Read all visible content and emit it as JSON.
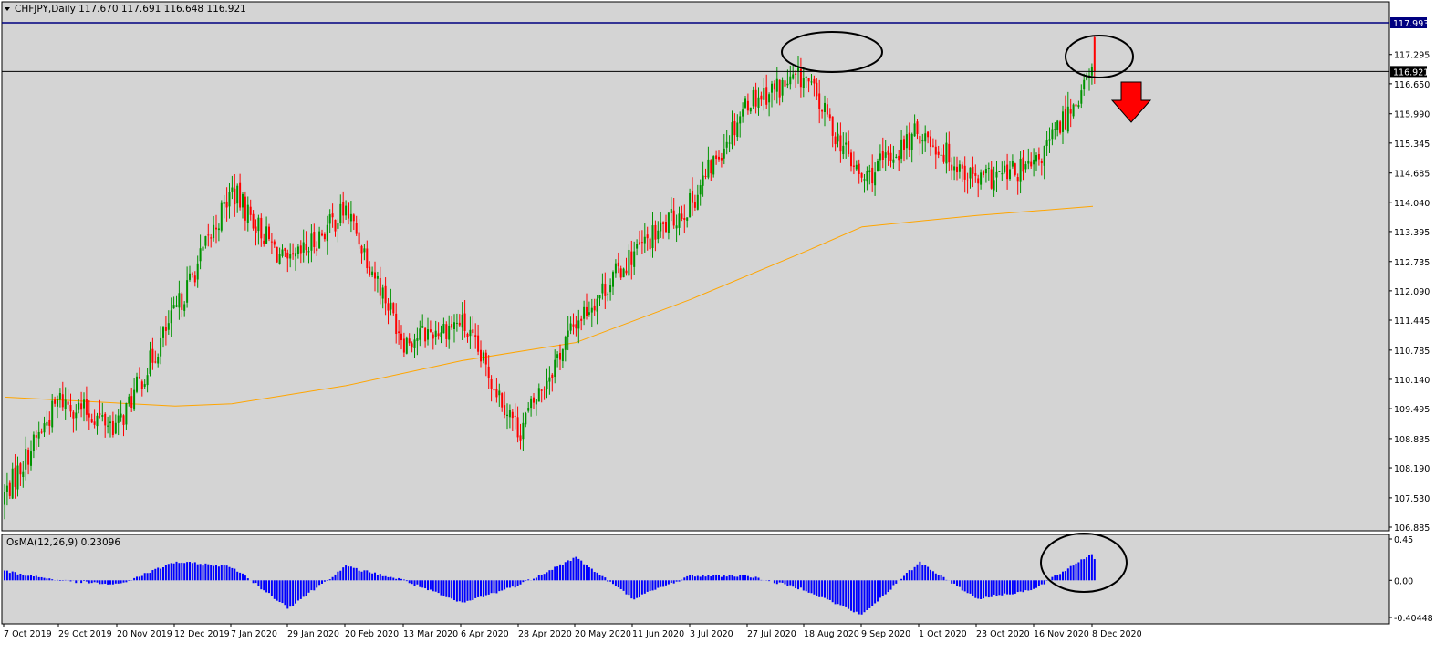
{
  "window": {
    "menu_icon": "triangle-down-icon",
    "header": "CHFJPY,Daily  117.670 117.691 116.648 116.921"
  },
  "chart_data": {
    "type": "candlestick",
    "symbol": "CHFJPY",
    "timeframe": "Daily",
    "ohlc_last": {
      "open": 117.67,
      "high": 117.691,
      "low": 116.648,
      "close": 116.921
    },
    "ylim": [
      106.885,
      117.993
    ],
    "y_ticks": [
      "117.993",
      "117.295",
      "116.921",
      "116.650",
      "115.990",
      "115.345",
      "114.685",
      "114.040",
      "113.395",
      "112.735",
      "112.090",
      "111.445",
      "110.785",
      "110.140",
      "109.495",
      "108.835",
      "108.190",
      "107.530",
      "106.885"
    ],
    "x_labels": [
      "7 Oct 2019",
      "29 Oct 2019",
      "20 Nov 2019",
      "12 Dec 2019",
      "7 Jan 2020",
      "29 Jan 2020",
      "20 Feb 2020",
      "13 Mar 2020",
      "6 Apr 2020",
      "28 Apr 2020",
      "20 May 2020",
      "11 Jun 2020",
      "3 Jul 2020",
      "27 Jul 2020",
      "18 Aug 2020",
      "9 Sep 2020",
      "1 Oct 2020",
      "23 Oct 2020",
      "16 Nov 2020",
      "8 Dec 2020"
    ],
    "close_anchors": [
      {
        "date": "7 Oct 2019",
        "close": 107.6
      },
      {
        "date": "29 Oct 2019",
        "close": 109.7
      },
      {
        "date": "20 Nov 2019",
        "close": 109.1
      },
      {
        "date": "12 Dec 2019",
        "close": 111.6
      },
      {
        "date": "7 Jan 2020",
        "close": 114.3
      },
      {
        "date": "29 Jan 2020",
        "close": 112.6
      },
      {
        "date": "20 Feb 2020",
        "close": 113.9
      },
      {
        "date": "13 Mar 2020",
        "close": 111.0
      },
      {
        "date": "6 Apr 2020",
        "close": 111.4
      },
      {
        "date": "28 Apr 2020",
        "close": 109.0
      },
      {
        "date": "20 May 2020",
        "close": 111.4
      },
      {
        "date": "11 Jun 2020",
        "close": 112.9
      },
      {
        "date": "3 Jul 2020",
        "close": 114.0
      },
      {
        "date": "27 Jul 2020",
        "close": 116.3
      },
      {
        "date": "18 Aug 2020",
        "close": 116.8
      },
      {
        "date": "9 Sep 2020",
        "close": 114.5
      },
      {
        "date": "1 Oct 2020",
        "close": 115.6
      },
      {
        "date": "23 Oct 2020",
        "close": 114.5
      },
      {
        "date": "16 Nov 2020",
        "close": 114.8
      },
      {
        "date": "8 Dec 2020",
        "close": 116.921
      }
    ],
    "ma_line": [
      {
        "date": "7 Oct 2019",
        "value": 109.75
      },
      {
        "date": "12 Dec 2019",
        "value": 109.55
      },
      {
        "date": "7 Jan 2020",
        "value": 109.6
      },
      {
        "date": "20 Feb 2020",
        "value": 110.0
      },
      {
        "date": "6 Apr 2020",
        "value": 110.55
      },
      {
        "date": "20 May 2020",
        "value": 110.95
      },
      {
        "date": "3 Jul 2020",
        "value": 111.9
      },
      {
        "date": "18 Aug 2020",
        "value": 112.95
      },
      {
        "date": "9 Sep 2020",
        "value": 113.5
      },
      {
        "date": "23 Oct 2020",
        "value": 113.75
      },
      {
        "date": "8 Dec 2020",
        "value": 113.95
      }
    ],
    "horizontal_lines": [
      {
        "value": 117.993,
        "color": "#000080",
        "label": "117.993"
      },
      {
        "value": 116.921,
        "color": "#000000",
        "label": "116.921"
      }
    ],
    "indicator": {
      "title": "OsMA(12,26,9) 0.23096",
      "name": "OsMA",
      "params": [
        12,
        26,
        9
      ],
      "last_value": 0.23096,
      "ylim": [
        -0.40448,
        0.45
      ],
      "y_ticks": [
        "0.45",
        "0.00",
        "-0.40448"
      ],
      "anchors": [
        {
          "date": "7 Oct 2019",
          "value": 0.1
        },
        {
          "date": "29 Oct 2019",
          "value": 0.0
        },
        {
          "date": "20 Nov 2019",
          "value": -0.05
        },
        {
          "date": "12 Dec 2019",
          "value": 0.2
        },
        {
          "date": "7 Jan 2020",
          "value": 0.15
        },
        {
          "date": "29 Jan 2020",
          "value": -0.3
        },
        {
          "date": "20 Feb 2020",
          "value": 0.15
        },
        {
          "date": "13 Mar 2020",
          "value": 0.0
        },
        {
          "date": "6 Apr 2020",
          "value": -0.25
        },
        {
          "date": "28 Apr 2020",
          "value": -0.05
        },
        {
          "date": "20 May 2020",
          "value": 0.25
        },
        {
          "date": "11 Jun 2020",
          "value": -0.2
        },
        {
          "date": "3 Jul 2020",
          "value": 0.05
        },
        {
          "date": "27 Jul 2020",
          "value": 0.05
        },
        {
          "date": "18 Aug 2020",
          "value": -0.1
        },
        {
          "date": "9 Sep 2020",
          "value": -0.38
        },
        {
          "date": "1 Oct 2020",
          "value": 0.2
        },
        {
          "date": "23 Oct 2020",
          "value": -0.2
        },
        {
          "date": "16 Nov 2020",
          "value": -0.1
        },
        {
          "date": "8 Dec 2020",
          "value": 0.3
        }
      ]
    },
    "annotations": [
      {
        "type": "ellipse",
        "label": "top-1-ellipse"
      },
      {
        "type": "ellipse",
        "label": "top-2-ellipse"
      },
      {
        "type": "ellipse",
        "label": "osma-ellipse"
      },
      {
        "type": "arrow",
        "direction": "down",
        "color": "#ff0000",
        "icon": "arrow-down-icon"
      }
    ],
    "colors": {
      "background": "#d4d4d4",
      "bull": "#009300",
      "bear": "#ff0000",
      "ma": "#ffa500",
      "osma": "#0000ff",
      "resistance": "#000080",
      "current": "#000000",
      "price_label_bg": "#000000",
      "top_label_bg": "#000080"
    },
    "grid": false
  }
}
